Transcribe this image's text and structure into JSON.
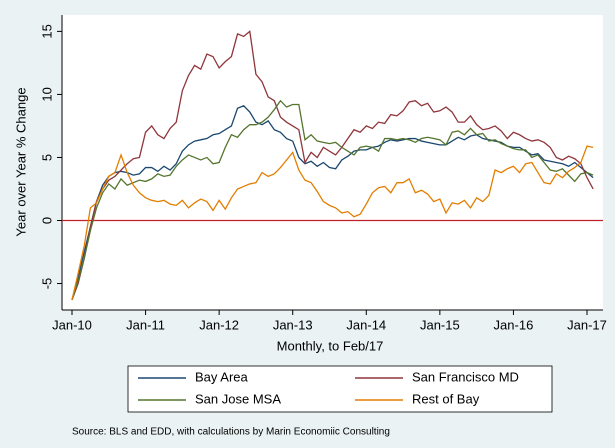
{
  "chart_data": {
    "type": "line",
    "ylabel": "Year over Year % Change",
    "xlabel": "Monthly, to Feb/17",
    "source": "Source: BLS and EDD, with calculations by Marin Economiic Consulting",
    "x": [
      "Jan-10",
      "Feb-10",
      "Mar-10",
      "Apr-10",
      "May-10",
      "Jun-10",
      "Jul-10",
      "Aug-10",
      "Sep-10",
      "Oct-10",
      "Nov-10",
      "Dec-10",
      "Jan-11",
      "Feb-11",
      "Mar-11",
      "Apr-11",
      "May-11",
      "Jun-11",
      "Jul-11",
      "Aug-11",
      "Sep-11",
      "Oct-11",
      "Nov-11",
      "Dec-11",
      "Jan-12",
      "Feb-12",
      "Mar-12",
      "Apr-12",
      "May-12",
      "Jun-12",
      "Jul-12",
      "Aug-12",
      "Sep-12",
      "Oct-12",
      "Nov-12",
      "Dec-12",
      "Jan-13",
      "Feb-13",
      "Mar-13",
      "Apr-13",
      "May-13",
      "Jun-13",
      "Jul-13",
      "Aug-13",
      "Sep-13",
      "Oct-13",
      "Nov-13",
      "Dec-13",
      "Jan-14",
      "Feb-14",
      "Mar-14",
      "Apr-14",
      "May-14",
      "Jun-14",
      "Jul-14",
      "Aug-14",
      "Sep-14",
      "Oct-14",
      "Nov-14",
      "Dec-14",
      "Jan-15",
      "Feb-15",
      "Mar-15",
      "Apr-15",
      "May-15",
      "Jun-15",
      "Jul-15",
      "Aug-15",
      "Sep-15",
      "Oct-15",
      "Nov-15",
      "Dec-15",
      "Jan-16",
      "Feb-16",
      "Mar-16",
      "Apr-16",
      "May-16",
      "Jun-16",
      "Jul-16",
      "Aug-16",
      "Sep-16",
      "Oct-16",
      "Nov-16",
      "Dec-16",
      "Jan-17",
      "Feb-17"
    ],
    "xticks": [
      "Jan-10",
      "Jan-11",
      "Jan-12",
      "Jan-13",
      "Jan-14",
      "Jan-15",
      "Jan-16",
      "Jan-17"
    ],
    "ylim": [
      -7.1,
      16.3
    ],
    "yticks": [
      -5,
      0,
      5,
      10,
      15
    ],
    "grid": false,
    "reference_line": {
      "value": 0,
      "color": "#c0202a"
    },
    "legend": "bottom",
    "series": [
      {
        "name": "Bay Area",
        "color": "#1a476f",
        "values": [
          -6.3,
          -4.5,
          -2.5,
          -0.5,
          1.5,
          2.8,
          3.5,
          3.8,
          3.9,
          3.8,
          3.6,
          3.7,
          4.2,
          4.2,
          3.9,
          4.3,
          4.0,
          4.5,
          5.5,
          6.0,
          6.3,
          6.4,
          6.5,
          6.8,
          6.9,
          7.2,
          7.5,
          8.9,
          9.1,
          8.6,
          7.8,
          7.6,
          7.9,
          7.2,
          7.0,
          6.5,
          6.3,
          5.0,
          4.5,
          4.7,
          4.3,
          4.6,
          4.2,
          4.1,
          4.8,
          5.1,
          5.5,
          5.6,
          5.6,
          5.8,
          5.9,
          6.2,
          6.4,
          6.3,
          6.4,
          6.5,
          6.5,
          6.3,
          6.2,
          6.1,
          6.0,
          6.0,
          6.3,
          6.6,
          6.4,
          6.7,
          6.8,
          6.5,
          6.4,
          6.3,
          6.2,
          5.9,
          5.8,
          5.8,
          5.5,
          5.2,
          5.3,
          4.8,
          4.7,
          4.6,
          4.5,
          4.3,
          4.6,
          4.2,
          3.8,
          3.4
        ]
      },
      {
        "name": "San Francisco MD",
        "color": "#90353b",
        "values": [
          -6.3,
          -5.0,
          -3.0,
          -0.5,
          1.5,
          2.5,
          3.2,
          3.5,
          4.0,
          4.5,
          4.9,
          5.0,
          7.0,
          7.5,
          6.8,
          6.5,
          7.3,
          7.8,
          10.3,
          11.5,
          12.3,
          12.0,
          13.2,
          13.0,
          12.1,
          12.6,
          13.0,
          14.8,
          14.6,
          15.0,
          11.6,
          11.0,
          9.8,
          9.5,
          8.2,
          7.8,
          7.5,
          7.2,
          4.6,
          5.4,
          5.0,
          5.8,
          5.5,
          5.2,
          5.8,
          6.5,
          7.2,
          7.0,
          7.5,
          7.3,
          7.8,
          7.7,
          8.4,
          8.3,
          8.7,
          9.4,
          9.5,
          9.1,
          9.3,
          8.6,
          8.7,
          9.0,
          8.6,
          7.8,
          7.8,
          8.3,
          7.6,
          7.2,
          7.3,
          7.5,
          7.1,
          6.5,
          7.0,
          6.8,
          6.5,
          6.3,
          6.4,
          6.2,
          5.8,
          5.0,
          4.8,
          5.1,
          4.9,
          4.5,
          3.4,
          2.5
        ]
      },
      {
        "name": "San Jose MSA",
        "color": "#55752f",
        "values": [
          -6.3,
          -4.8,
          -3.0,
          -0.8,
          1.0,
          2.2,
          2.9,
          2.5,
          3.3,
          2.8,
          3.0,
          3.2,
          3.1,
          3.3,
          3.7,
          3.5,
          3.6,
          4.3,
          4.8,
          5.2,
          5.0,
          4.8,
          5.0,
          4.5,
          4.6,
          5.8,
          6.8,
          6.6,
          7.2,
          7.6,
          7.6,
          7.8,
          8.2,
          8.8,
          9.5,
          9.0,
          9.2,
          9.2,
          6.4,
          6.8,
          6.3,
          6.2,
          6.1,
          6.2,
          5.8,
          5.5,
          5.2,
          5.8,
          5.9,
          5.8,
          5.5,
          6.5,
          6.5,
          6.4,
          6.5,
          6.4,
          6.2,
          6.5,
          6.6,
          6.5,
          6.4,
          6.0,
          7.0,
          7.1,
          6.8,
          7.3,
          6.8,
          6.9,
          6.3,
          6.4,
          6.1,
          5.9,
          5.7,
          5.6,
          5.6,
          5.0,
          5.2,
          4.6,
          4.0,
          3.9,
          4.1,
          3.6,
          3.1,
          3.7,
          3.8,
          3.6
        ]
      },
      {
        "name": "Rest of Bay",
        "color": "#e37e00",
        "values": [
          -6.3,
          -4.2,
          -2.0,
          1.0,
          1.4,
          2.5,
          3.5,
          3.8,
          5.2,
          3.8,
          2.8,
          2.2,
          1.8,
          1.6,
          1.5,
          1.6,
          1.3,
          1.2,
          1.6,
          1.0,
          1.4,
          1.7,
          1.5,
          0.8,
          1.6,
          0.9,
          1.8,
          2.5,
          2.7,
          2.9,
          3.0,
          3.8,
          3.5,
          3.7,
          4.2,
          4.8,
          5.4,
          4.0,
          3.2,
          3.0,
          2.3,
          1.5,
          1.2,
          1.0,
          0.6,
          0.7,
          0.3,
          0.5,
          1.3,
          2.2,
          2.6,
          2.7,
          2.2,
          3.0,
          3.0,
          3.3,
          2.2,
          2.4,
          2.1,
          1.5,
          1.7,
          0.6,
          1.4,
          1.3,
          1.6,
          1.0,
          1.8,
          1.5,
          2.0,
          4.0,
          3.8,
          4.1,
          4.3,
          3.8,
          4.5,
          4.6,
          3.8,
          3.0,
          2.9,
          3.7,
          3.4,
          3.9,
          4.2,
          4.6,
          5.9,
          5.8
        ]
      }
    ]
  }
}
